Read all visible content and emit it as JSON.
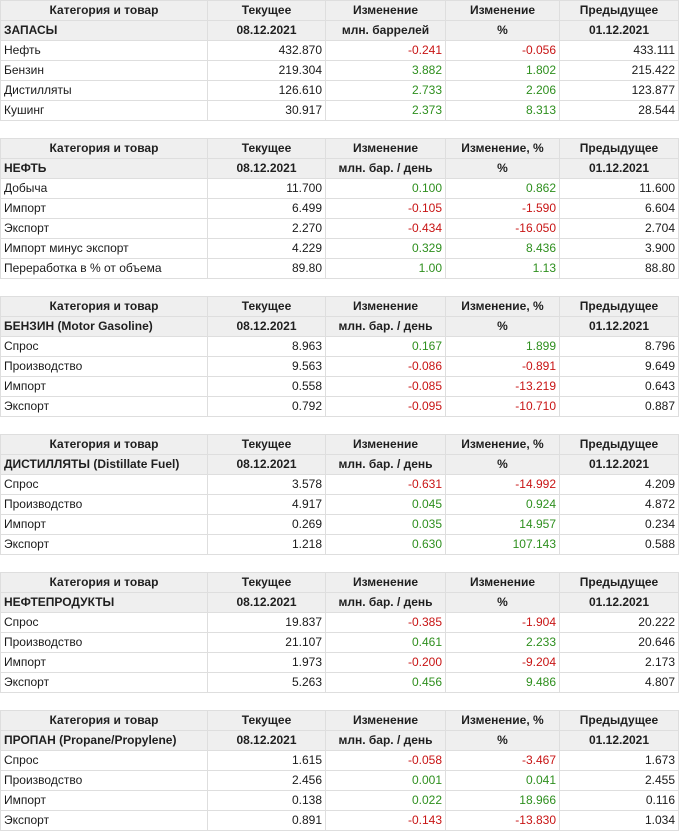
{
  "sections": [
    {
      "header": [
        "Категория и товар",
        "Текущее",
        "Изменение",
        "Изменение",
        "Предыдущее"
      ],
      "sub": [
        "ЗАПАСЫ",
        "08.12.2021",
        "млн. баррелей",
        "%",
        "01.12.2021"
      ],
      "rows": [
        {
          "name": "Нефть",
          "cur": "432.870",
          "chg": "-0.241",
          "pct": "-0.056",
          "prev": "433.111",
          "sign": "neg"
        },
        {
          "name": "Бензин",
          "cur": "219.304",
          "chg": "3.882",
          "pct": "1.802",
          "prev": "215.422",
          "sign": "pos"
        },
        {
          "name": "Дистилляты",
          "cur": "126.610",
          "chg": "2.733",
          "pct": "2.206",
          "prev": "123.877",
          "sign": "pos"
        },
        {
          "name": "Кушинг",
          "cur": "30.917",
          "chg": "2.373",
          "pct": "8.313",
          "prev": "28.544",
          "sign": "pos"
        }
      ]
    },
    {
      "header": [
        "Категория и товар",
        "Текущее",
        "Изменение",
        "Изменение, %",
        "Предыдущее"
      ],
      "sub": [
        "НЕФТЬ",
        "08.12.2021",
        "млн. бар. / день",
        "%",
        "01.12.2021"
      ],
      "rows": [
        {
          "name": "Добыча",
          "cur": "11.700",
          "chg": "0.100",
          "pct": "0.862",
          "prev": "11.600",
          "sign": "pos"
        },
        {
          "name": "Импорт",
          "cur": "6.499",
          "chg": "-0.105",
          "pct": "-1.590",
          "prev": "6.604",
          "sign": "neg"
        },
        {
          "name": "Экспорт",
          "cur": "2.270",
          "chg": "-0.434",
          "pct": "-16.050",
          "prev": "2.704",
          "sign": "neg"
        },
        {
          "name": "Импорт минус экспорт",
          "cur": "4.229",
          "chg": "0.329",
          "pct": "8.436",
          "prev": "3.900",
          "sign": "pos"
        },
        {
          "name": "Переработка в % от объема",
          "cur": "89.80",
          "chg": "1.00",
          "pct": "1.13",
          "prev": "88.80",
          "sign": "pos"
        }
      ]
    },
    {
      "header": [
        "Категория и товар",
        "Текущее",
        "Изменение",
        "Изменение, %",
        "Предыдущее"
      ],
      "sub": [
        "БЕНЗИН (Motor Gasoline)",
        "08.12.2021",
        "млн. бар. / день",
        "%",
        "01.12.2021"
      ],
      "rows": [
        {
          "name": "Спрос",
          "cur": "8.963",
          "chg": "0.167",
          "pct": "1.899",
          "prev": "8.796",
          "sign": "pos"
        },
        {
          "name": "Производство",
          "cur": "9.563",
          "chg": "-0.086",
          "pct": "-0.891",
          "prev": "9.649",
          "sign": "neg"
        },
        {
          "name": "Импорт",
          "cur": "0.558",
          "chg": "-0.085",
          "pct": "-13.219",
          "prev": "0.643",
          "sign": "neg"
        },
        {
          "name": "Экспорт",
          "cur": "0.792",
          "chg": "-0.095",
          "pct": "-10.710",
          "prev": "0.887",
          "sign": "neg"
        }
      ]
    },
    {
      "header": [
        "Категория и товар",
        "Текущее",
        "Изменение",
        "Изменение, %",
        "Предыдущее"
      ],
      "sub": [
        "ДИСТИЛЛЯТЫ (Distillate Fuel)",
        "08.12.2021",
        "млн. бар. / день",
        "%",
        "01.12.2021"
      ],
      "rows": [
        {
          "name": "Спрос",
          "cur": "3.578",
          "chg": "-0.631",
          "pct": "-14.992",
          "prev": "4.209",
          "sign": "neg"
        },
        {
          "name": "Производство",
          "cur": "4.917",
          "chg": "0.045",
          "pct": "0.924",
          "prev": "4.872",
          "sign": "pos"
        },
        {
          "name": "Импорт",
          "cur": "0.269",
          "chg": "0.035",
          "pct": "14.957",
          "prev": "0.234",
          "sign": "pos"
        },
        {
          "name": "Экспорт",
          "cur": "1.218",
          "chg": "0.630",
          "pct": "107.143",
          "prev": "0.588",
          "sign": "pos"
        }
      ]
    },
    {
      "header": [
        "Категория и товар",
        "Текущее",
        "Изменение",
        "Изменение",
        "Предыдущее"
      ],
      "sub": [
        "НЕФТЕПРОДУКТЫ",
        "08.12.2021",
        "млн. бар. / день",
        "%",
        "01.12.2021"
      ],
      "rows": [
        {
          "name": "Спрос",
          "cur": "19.837",
          "chg": "-0.385",
          "pct": "-1.904",
          "prev": "20.222",
          "sign": "neg"
        },
        {
          "name": "Производство",
          "cur": "21.107",
          "chg": "0.461",
          "pct": "2.233",
          "prev": "20.646",
          "sign": "pos"
        },
        {
          "name": "Импорт",
          "cur": "1.973",
          "chg": "-0.200",
          "pct": "-9.204",
          "prev": "2.173",
          "sign": "neg"
        },
        {
          "name": "Экспорт",
          "cur": "5.263",
          "chg": "0.456",
          "pct": "9.486",
          "prev": "4.807",
          "sign": "pos"
        }
      ]
    },
    {
      "header": [
        "Категория и товар",
        "Текущее",
        "Изменение",
        "Изменение, %",
        "Предыдущее"
      ],
      "sub": [
        "ПРОПАН (Propane/Propylene)",
        "08.12.2021",
        "млн. бар. / день",
        "%",
        "01.12.2021"
      ],
      "rows": [
        {
          "name": "Спрос",
          "cur": "1.615",
          "chg": "-0.058",
          "pct": "-3.467",
          "prev": "1.673",
          "sign": "neg"
        },
        {
          "name": "Производство",
          "cur": "2.456",
          "chg": "0.001",
          "pct": "0.041",
          "prev": "2.455",
          "sign": "pos"
        },
        {
          "name": "Импорт",
          "cur": "0.138",
          "chg": "0.022",
          "pct": "18.966",
          "prev": "0.116",
          "sign": "pos"
        },
        {
          "name": "Экспорт",
          "cur": "0.891",
          "chg": "-0.143",
          "pct": "-13.830",
          "prev": "1.034",
          "sign": "neg"
        }
      ]
    }
  ],
  "colors": {
    "positive": "#2e8f1e",
    "negative": "#c81414",
    "header_bg": "#efefef"
  }
}
